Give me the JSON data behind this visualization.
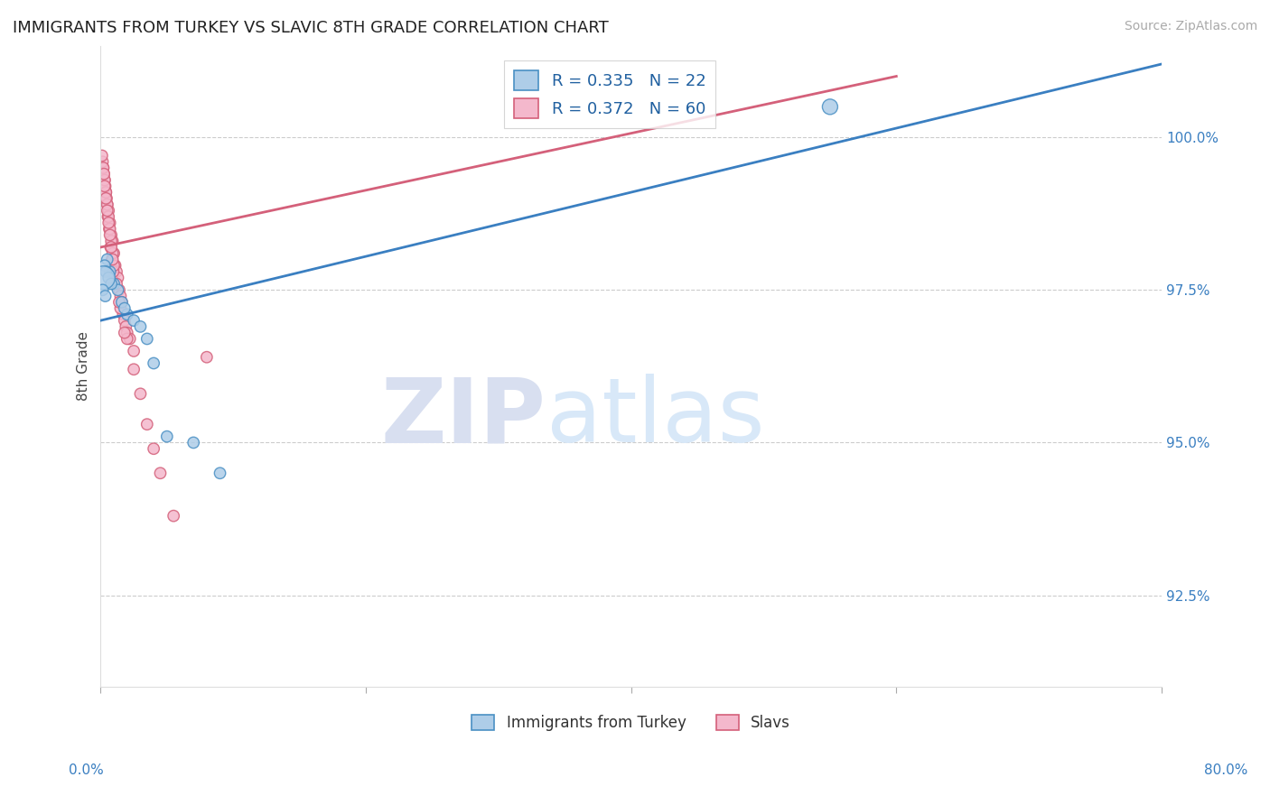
{
  "title": "IMMIGRANTS FROM TURKEY VS SLAVIC 8TH GRADE CORRELATION CHART",
  "source": "Source: ZipAtlas.com",
  "ylabel": "8th Grade",
  "y_ticks": [
    92.5,
    95.0,
    97.5,
    100.0
  ],
  "y_tick_labels": [
    "92.5%",
    "95.0%",
    "97.5%",
    "100.0%"
  ],
  "x_range": [
    0.0,
    80.0
  ],
  "y_range": [
    91.0,
    101.5
  ],
  "blue_R": 0.335,
  "blue_N": 22,
  "pink_R": 0.372,
  "pink_N": 60,
  "blue_color": "#aecde8",
  "pink_color": "#f4b8cc",
  "blue_edge_color": "#4a90c4",
  "pink_edge_color": "#d4607a",
  "blue_line_color": "#3a7fc1",
  "pink_line_color": "#d4607a",
  "legend_label_blue": "Immigrants from Turkey",
  "legend_label_pink": "Slavs",
  "watermark_zip": "ZIP",
  "watermark_atlas": "atlas",
  "background_color": "#ffffff",
  "grid_color": "#cccccc",
  "blue_trend_x0": 0.0,
  "blue_trend_y0": 97.0,
  "blue_trend_x1": 80.0,
  "blue_trend_y1": 101.2,
  "pink_trend_x0": 0.0,
  "pink_trend_y0": 98.2,
  "pink_trend_x1": 60.0,
  "pink_trend_y1": 101.0,
  "blue_x": [
    0.5,
    0.7,
    1.0,
    1.3,
    1.6,
    2.0,
    2.5,
    3.0,
    0.3,
    0.4,
    0.6,
    0.8,
    55.0,
    0.2,
    1.8,
    3.5,
    5.0,
    7.0,
    9.0,
    0.15,
    0.35,
    4.0
  ],
  "blue_y": [
    98.0,
    97.8,
    97.6,
    97.5,
    97.3,
    97.1,
    97.0,
    96.9,
    97.9,
    97.8,
    97.7,
    97.6,
    100.5,
    97.7,
    97.2,
    96.7,
    95.1,
    95.0,
    94.5,
    97.5,
    97.4,
    96.3
  ],
  "blue_s": [
    80,
    80,
    80,
    80,
    80,
    80,
    80,
    80,
    80,
    80,
    80,
    80,
    150,
    350,
    80,
    80,
    80,
    80,
    80,
    80,
    80,
    80
  ],
  "pink_x": [
    0.2,
    0.3,
    0.4,
    0.5,
    0.6,
    0.7,
    0.8,
    0.9,
    1.0,
    1.1,
    1.2,
    1.3,
    1.4,
    1.5,
    1.6,
    1.7,
    1.8,
    1.9,
    2.0,
    2.2,
    2.5,
    0.15,
    0.25,
    0.35,
    0.45,
    0.55,
    0.65,
    0.75,
    0.85,
    0.95,
    0.1,
    0.2,
    0.3,
    0.4,
    0.5,
    0.6,
    0.7,
    0.8,
    0.9,
    1.0,
    1.5,
    2.0,
    2.5,
    3.0,
    3.5,
    4.0,
    1.2,
    1.4,
    0.25,
    1.8,
    4.5,
    5.5,
    8.0,
    0.3,
    0.4,
    0.5,
    0.6,
    0.7,
    0.8,
    0.9
  ],
  "pink_y": [
    99.5,
    99.3,
    99.1,
    98.9,
    98.8,
    98.6,
    98.4,
    98.3,
    98.1,
    97.9,
    97.8,
    97.7,
    97.5,
    97.4,
    97.3,
    97.1,
    97.0,
    96.9,
    96.8,
    96.7,
    96.5,
    99.6,
    99.4,
    99.2,
    99.0,
    98.7,
    98.5,
    98.2,
    98.0,
    97.8,
    99.7,
    99.5,
    99.3,
    99.1,
    98.9,
    98.7,
    98.5,
    98.3,
    98.1,
    97.9,
    97.2,
    96.7,
    96.2,
    95.8,
    95.3,
    94.9,
    97.6,
    97.3,
    99.4,
    96.8,
    94.5,
    93.8,
    96.4,
    99.2,
    99.0,
    98.8,
    98.6,
    98.4,
    98.2,
    98.0
  ],
  "pink_s": [
    80,
    80,
    80,
    80,
    80,
    80,
    80,
    80,
    80,
    80,
    80,
    80,
    80,
    80,
    80,
    80,
    80,
    80,
    80,
    80,
    80,
    80,
    80,
    80,
    80,
    80,
    80,
    80,
    80,
    80,
    80,
    80,
    80,
    80,
    80,
    80,
    80,
    80,
    80,
    80,
    80,
    80,
    80,
    80,
    80,
    80,
    80,
    80,
    80,
    80,
    80,
    80,
    80,
    80,
    80,
    80,
    80,
    80,
    80,
    80
  ]
}
